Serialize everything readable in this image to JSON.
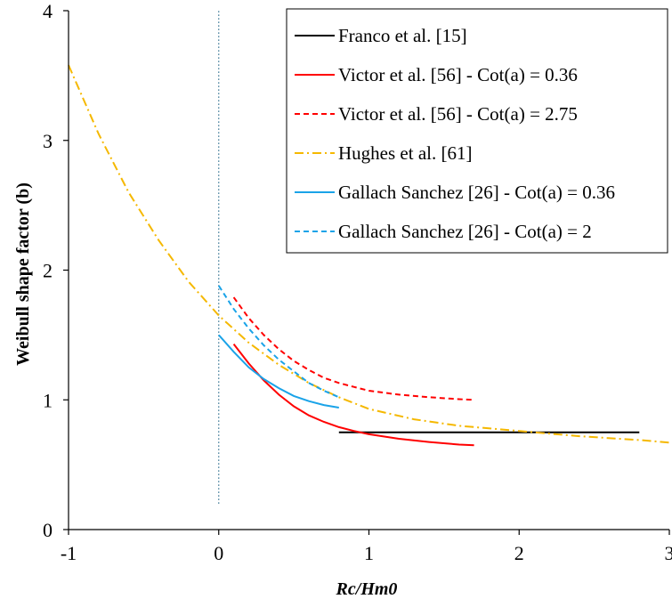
{
  "chart_data": {
    "type": "line",
    "title": "",
    "xlabel": "Rc/Hm0",
    "ylabel": "Weibull shape factor (b)",
    "xlim": [
      -1,
      3
    ],
    "ylim": [
      0,
      4
    ],
    "xticks": [
      "-1",
      "0",
      "1",
      "2",
      "3"
    ],
    "yticks": [
      "0",
      "1",
      "2",
      "3",
      "4"
    ],
    "grid": false,
    "legend_position": "top-right",
    "reference_line": {
      "x": 0,
      "y_range": [
        0.2,
        4.0
      ],
      "style": "dotted",
      "color": "#2f6f8f"
    },
    "series": [
      {
        "name": "Franco et al. [15]",
        "color": "#000000",
        "dash": "solid",
        "x": [
          0.8,
          2.8
        ],
        "y": [
          0.75,
          0.75
        ]
      },
      {
        "name": "Victor et al. [56] - Cot(a) = 0.36",
        "color": "#ff0000",
        "dash": "solid",
        "x": [
          0.1,
          0.2,
          0.3,
          0.4,
          0.5,
          0.6,
          0.7,
          0.8,
          0.9,
          1.0,
          1.2,
          1.4,
          1.6,
          1.7
        ],
        "y": [
          1.43,
          1.28,
          1.15,
          1.04,
          0.95,
          0.88,
          0.83,
          0.79,
          0.76,
          0.735,
          0.7,
          0.675,
          0.655,
          0.65
        ]
      },
      {
        "name": "Victor et al. [56] - Cot(a) = 2.75",
        "color": "#ff0000",
        "dash": "dashed",
        "x": [
          0.1,
          0.2,
          0.3,
          0.4,
          0.5,
          0.6,
          0.7,
          0.8,
          0.9,
          1.0,
          1.2,
          1.4,
          1.6,
          1.7
        ],
        "y": [
          1.79,
          1.63,
          1.5,
          1.39,
          1.3,
          1.23,
          1.17,
          1.13,
          1.1,
          1.07,
          1.04,
          1.02,
          1.005,
          1.0
        ]
      },
      {
        "name": "Hughes et al. [61]",
        "color": "#f5b800",
        "dash": "dashdot",
        "x": [
          -1.0,
          -0.8,
          -0.6,
          -0.4,
          -0.2,
          0.0,
          0.2,
          0.4,
          0.6,
          0.8,
          1.0,
          1.3,
          1.6,
          2.0,
          2.4,
          2.8,
          3.0
        ],
        "y": [
          3.58,
          3.05,
          2.6,
          2.23,
          1.91,
          1.65,
          1.44,
          1.27,
          1.13,
          1.02,
          0.93,
          0.85,
          0.8,
          0.76,
          0.72,
          0.69,
          0.67
        ]
      },
      {
        "name": "Gallach Sanchez [26] - Cot(a) = 0.36",
        "color": "#1aa3e8",
        "dash": "solid",
        "x": [
          0.0,
          0.1,
          0.2,
          0.3,
          0.4,
          0.5,
          0.6,
          0.7,
          0.8
        ],
        "y": [
          1.5,
          1.37,
          1.25,
          1.16,
          1.09,
          1.03,
          0.99,
          0.96,
          0.94
        ]
      },
      {
        "name": "Gallach Sanchez [26] - Cot(a) = 2",
        "color": "#1aa3e8",
        "dash": "dashed",
        "x": [
          0.0,
          0.1,
          0.2,
          0.3,
          0.4,
          0.5,
          0.6,
          0.7,
          0.8
        ],
        "y": [
          1.88,
          1.7,
          1.55,
          1.42,
          1.31,
          1.22,
          1.13,
          1.07,
          1.02
        ]
      }
    ]
  }
}
